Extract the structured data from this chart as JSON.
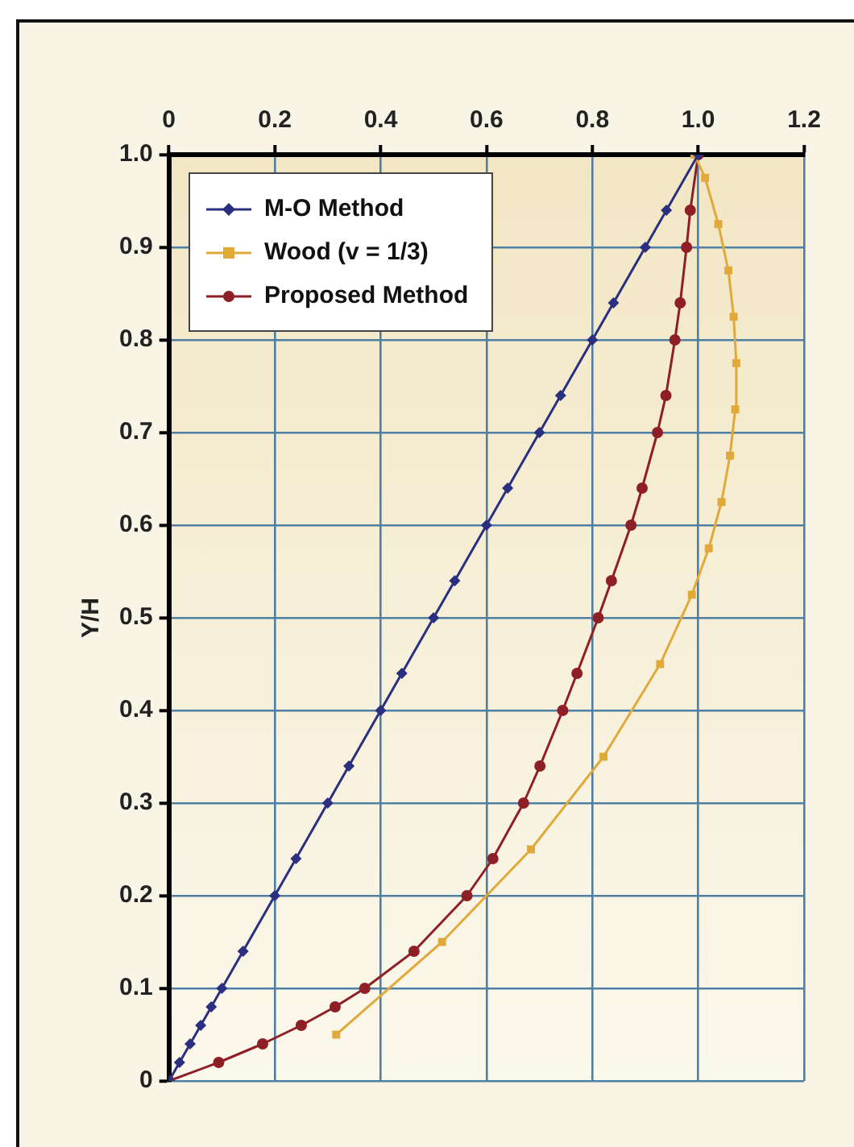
{
  "chart_data": {
    "type": "line",
    "ylabel": "Y/H",
    "xlim": [
      0,
      1.2
    ],
    "ylim": [
      0,
      1
    ],
    "xticks": [
      0,
      0.2,
      0.4,
      0.6,
      0.8,
      {
        "value": 1,
        "label": "1.0"
      },
      1.2
    ],
    "yticks": [
      0,
      0.1,
      0.2,
      0.3,
      0.4,
      0.5,
      0.6,
      0.7,
      0.8,
      0.9,
      {
        "value": 1,
        "label": "1.0"
      }
    ],
    "grid": true,
    "legend": "top left",
    "line_style": "solid",
    "series": [
      {
        "name": "M-O Method",
        "color": "#2b2f7f",
        "marker": "diamond",
        "x": [
          0,
          0.02,
          0.04,
          0.06,
          0.08,
          0.1,
          0.14,
          0.2,
          0.24,
          0.3,
          0.34,
          0.4,
          0.44,
          0.5,
          0.54,
          0.6,
          0.64,
          0.7,
          0.74,
          0.8,
          0.84,
          0.9,
          0.94,
          1.0
        ],
        "values": [
          0,
          0.02,
          0.04,
          0.06,
          0.08,
          0.1,
          0.14,
          0.2,
          0.24,
          0.3,
          0.34,
          0.4,
          0.44,
          0.5,
          0.54,
          0.6,
          0.64,
          0.7,
          0.74,
          0.8,
          0.84,
          0.9,
          0.94,
          1.0
        ]
      },
      {
        "name": "Wood (v = 1/3)",
        "color": "#e0a93a",
        "marker": "square",
        "x": [
          0.316,
          0.516,
          0.684,
          0.821,
          0.928,
          0.988,
          1.02,
          1.044,
          1.06,
          1.07,
          1.072,
          1.067,
          1.057,
          1.038,
          1.013,
          0.993
        ],
        "values": [
          0.05,
          0.15,
          0.25,
          0.35,
          0.45,
          0.525,
          0.575,
          0.625,
          0.675,
          0.725,
          0.775,
          0.825,
          0.875,
          0.925,
          0.975,
          1.0
        ]
      },
      {
        "name": "Proposed Method",
        "color": "#8f1f27",
        "marker": "circle",
        "x": [
          0,
          0.094,
          0.177,
          0.25,
          0.314,
          0.37,
          0.463,
          0.563,
          0.612,
          0.67,
          0.701,
          0.744,
          0.771,
          0.811,
          0.836,
          0.873,
          0.894,
          0.923,
          0.939,
          0.956,
          0.966,
          0.978,
          0.985,
          1.0
        ],
        "values": [
          0,
          0.02,
          0.04,
          0.06,
          0.08,
          0.1,
          0.14,
          0.2,
          0.24,
          0.3,
          0.34,
          0.4,
          0.44,
          0.5,
          0.54,
          0.6,
          0.64,
          0.7,
          0.74,
          0.8,
          0.84,
          0.9,
          0.94,
          1.0
        ]
      }
    ]
  }
}
